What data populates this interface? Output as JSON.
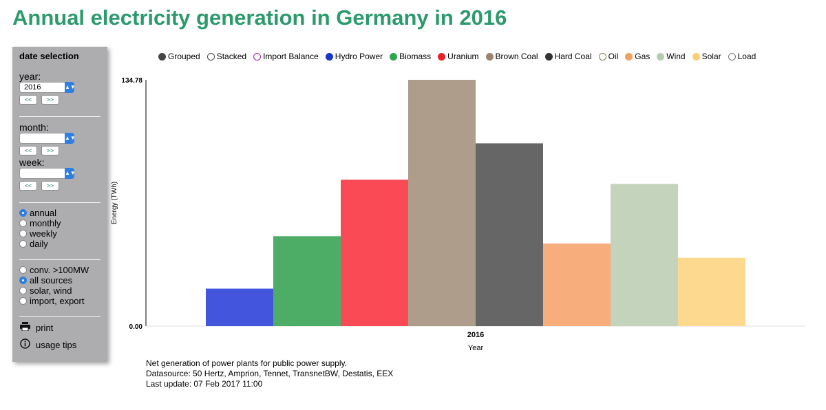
{
  "title": "Annual electricity generation in Germany in 2016",
  "sidebar": {
    "header": "date selection",
    "year_label": "year:",
    "year_value": "2016",
    "month_label": "month:",
    "month_value": "",
    "week_label": "week:",
    "week_value": "",
    "prev_label": "<<",
    "next_label": ">>",
    "period_options": [
      {
        "label": "annual",
        "selected": true
      },
      {
        "label": "monthly",
        "selected": false
      },
      {
        "label": "weekly",
        "selected": false
      },
      {
        "label": "daily",
        "selected": false
      }
    ],
    "source_options": [
      {
        "label": "conv. >100MW",
        "selected": false
      },
      {
        "label": "all sources",
        "selected": true
      },
      {
        "label": "solar, wind",
        "selected": false
      },
      {
        "label": "import, export",
        "selected": false
      }
    ],
    "print_label": "print",
    "usage_tips_label": "usage tips"
  },
  "legend": [
    {
      "label": "Grouped",
      "color": "#444444",
      "filled": true
    },
    {
      "label": "Stacked",
      "color": "#444444",
      "filled": false
    },
    {
      "label": "Import Balance",
      "color": "#8a2a9a",
      "filled": false
    },
    {
      "label": "Hydro Power",
      "color": "#1b36c9",
      "filled": true
    },
    {
      "label": "Biomass",
      "color": "#2ea84e",
      "filled": true
    },
    {
      "label": "Uranium",
      "color": "#e8202a",
      "filled": true
    },
    {
      "label": "Brown Coal",
      "color": "#9c8470",
      "filled": true
    },
    {
      "label": "Hard Coal",
      "color": "#333333",
      "filled": true
    },
    {
      "label": "Oil",
      "color": "#8a7a5a",
      "filled": false
    },
    {
      "label": "Gas",
      "color": "#f4a05e",
      "filled": true
    },
    {
      "label": "Wind",
      "color": "#b5cbb0",
      "filled": true
    },
    {
      "label": "Solar",
      "color": "#f9cf73",
      "filled": true
    },
    {
      "label": "Load",
      "color": "#777777",
      "filled": false
    }
  ],
  "chart_data": {
    "type": "bar",
    "categories": [
      "2016"
    ],
    "xlabel": "Year",
    "ylabel": "Energy (TWh)",
    "ylim": [
      0,
      134.78
    ],
    "y_ticks": [
      "0.00",
      "134.78"
    ],
    "grid": false,
    "series": [
      {
        "name": "Hydro Power",
        "values": [
          20.5
        ],
        "color": "#4455dd"
      },
      {
        "name": "Biomass",
        "values": [
          49.2
        ],
        "color": "#4dad66"
      },
      {
        "name": "Uranium",
        "values": [
          80.1
        ],
        "color": "#fa4a55"
      },
      {
        "name": "Brown Coal",
        "values": [
          134.78
        ],
        "color": "#ad9d8a"
      },
      {
        "name": "Hard Coal",
        "values": [
          100.0
        ],
        "color": "#666666"
      },
      {
        "name": "Gas",
        "values": [
          45.2
        ],
        "color": "#f8ad7c"
      },
      {
        "name": "Wind",
        "values": [
          77.8
        ],
        "color": "#c3d3bc"
      },
      {
        "name": "Solar",
        "values": [
          37.4
        ],
        "color": "#fdd98f"
      }
    ]
  },
  "footnote": [
    "Net generation of power plants for public power supply.",
    "Datasource: 50 Hertz, Amprion, Tennet, TransnetBW, Destatis, EEX",
    "Last update: 07 Feb 2017 11:00"
  ]
}
